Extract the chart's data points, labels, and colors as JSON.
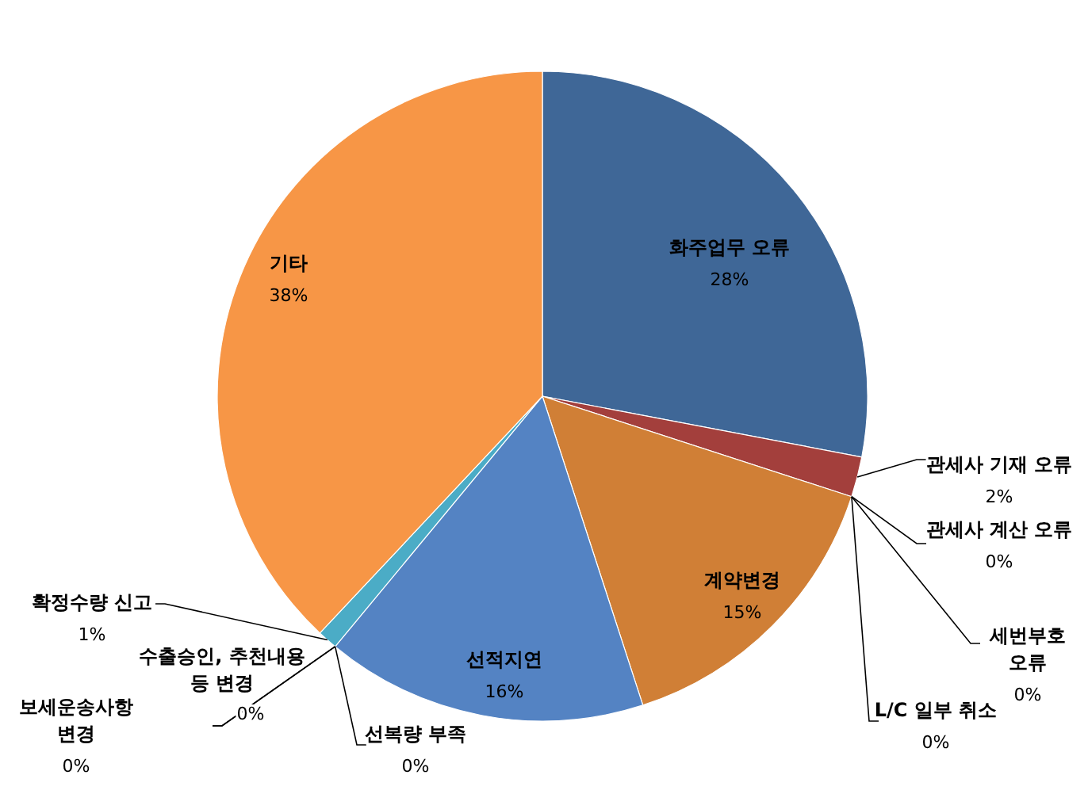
{
  "chart_data": {
    "type": "pie",
    "categories": [
      "화주업무 오류",
      "관세사 기재 오류",
      "관세사 계산 오류",
      "세번부호 오류",
      "L/C 일부 취소",
      "계약변경",
      "선적지연",
      "선복량 부족",
      "보세운송사항 변경",
      "수출승인, 추천내용 등 변경",
      "확정수량 신고",
      "기타"
    ],
    "values": [
      28,
      2,
      0,
      0,
      0,
      15,
      16,
      0,
      0,
      0,
      1,
      38
    ],
    "value_labels": [
      "28%",
      "2%",
      "0%",
      "0%",
      "0%",
      "15%",
      "16%",
      "0%",
      "0%",
      "0%",
      "1%",
      "38%"
    ],
    "colors": [
      "#3f6797",
      "#a33f3c",
      "#7f9a48",
      "#7f63a1",
      "#3e9ab3",
      "#d07f36",
      "#5483c3",
      "#c0504d",
      "#9bbb59",
      "#8064a2",
      "#4bacc6",
      "#f79646"
    ]
  }
}
